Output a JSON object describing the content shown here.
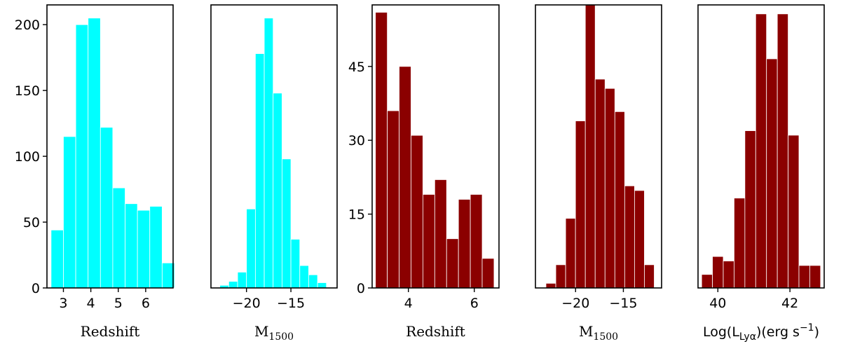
{
  "chart_data": [
    {
      "type": "bar",
      "name": "panel-1",
      "color": "#00FFFF",
      "xlabel": "Redshift",
      "xlim": [
        2.4,
        7.0
      ],
      "ylim": [
        0,
        215
      ],
      "xticks": [
        3,
        4,
        5,
        6
      ],
      "yticks": [
        0,
        50,
        100,
        150,
        200
      ],
      "bin_edges": [
        2.55,
        3.0,
        3.45,
        3.9,
        4.35,
        4.8,
        5.25,
        5.7,
        6.15,
        6.6,
        7.05
      ],
      "values": [
        44,
        115,
        200,
        205,
        122,
        76,
        64,
        59,
        62,
        19
      ]
    },
    {
      "type": "bar",
      "name": "panel-2",
      "color": "#00FFFF",
      "xlabel": "M",
      "xlabel_sub": "1500",
      "xlim": [
        -24.0,
        -9.8
      ],
      "ylim": [
        0,
        215
      ],
      "xticks": [
        -20,
        -15
      ],
      "yticks": [],
      "bin_edges": [
        -23.0,
        -22.0,
        -21.0,
        -20.0,
        -19.0,
        -18.0,
        -17.0,
        -16.0,
        -15.0,
        -14.0,
        -13.0,
        -12.0,
        -11.0
      ],
      "values": [
        2,
        5,
        12,
        60,
        178,
        205,
        148,
        98,
        37,
        17,
        10,
        4
      ]
    },
    {
      "type": "bar",
      "name": "panel-3",
      "color": "#8B0000",
      "xlabel": "Redshift",
      "xlim": [
        2.9,
        6.75
      ],
      "ylim": [
        0,
        57.5
      ],
      "xticks": [
        4,
        6
      ],
      "yticks": [
        0,
        15,
        30,
        45
      ],
      "bin_edges": [
        3.0,
        3.36,
        3.72,
        4.08,
        4.44,
        4.8,
        5.16,
        5.52,
        5.88,
        6.24,
        6.6
      ],
      "values": [
        56,
        36,
        45,
        31,
        19,
        22,
        10,
        18,
        19,
        6
      ]
    },
    {
      "type": "bar",
      "name": "panel-4",
      "color": "#8B0000",
      "xlabel": "M",
      "xlabel_sub": "1500",
      "xlim": [
        -24.2,
        -11.0
      ],
      "ylim": [
        0,
        61
      ],
      "xticks": [
        -20,
        -15
      ],
      "yticks": [],
      "bin_edges": [
        -23.1,
        -22.07,
        -21.04,
        -20.01,
        -18.98,
        -17.95,
        -16.92,
        -15.89,
        -14.86,
        -13.83,
        -12.8,
        -11.77
      ],
      "values": [
        1,
        5,
        15,
        36,
        61,
        45,
        43,
        38,
        22,
        21,
        5
      ]
    },
    {
      "type": "bar",
      "name": "panel-5",
      "color": "#8B0000",
      "xlabel": "Log(L",
      "xlabel_sub": "Lyα",
      "xlabel_suffix": ")(erg s",
      "xlabel_sup": "−1",
      "xlabel_end": ")",
      "xlim": [
        39.45,
        42.95
      ],
      "ylim": [
        0,
        63
      ],
      "xticks": [
        40,
        42
      ],
      "yticks": [],
      "bin_edges": [
        39.55,
        39.85,
        40.15,
        40.45,
        40.75,
        41.05,
        41.35,
        41.65,
        41.95,
        42.25,
        42.55,
        42.85
      ],
      "values": [
        3,
        7,
        6,
        20,
        35,
        61,
        51,
        61,
        34,
        5,
        5
      ]
    }
  ]
}
